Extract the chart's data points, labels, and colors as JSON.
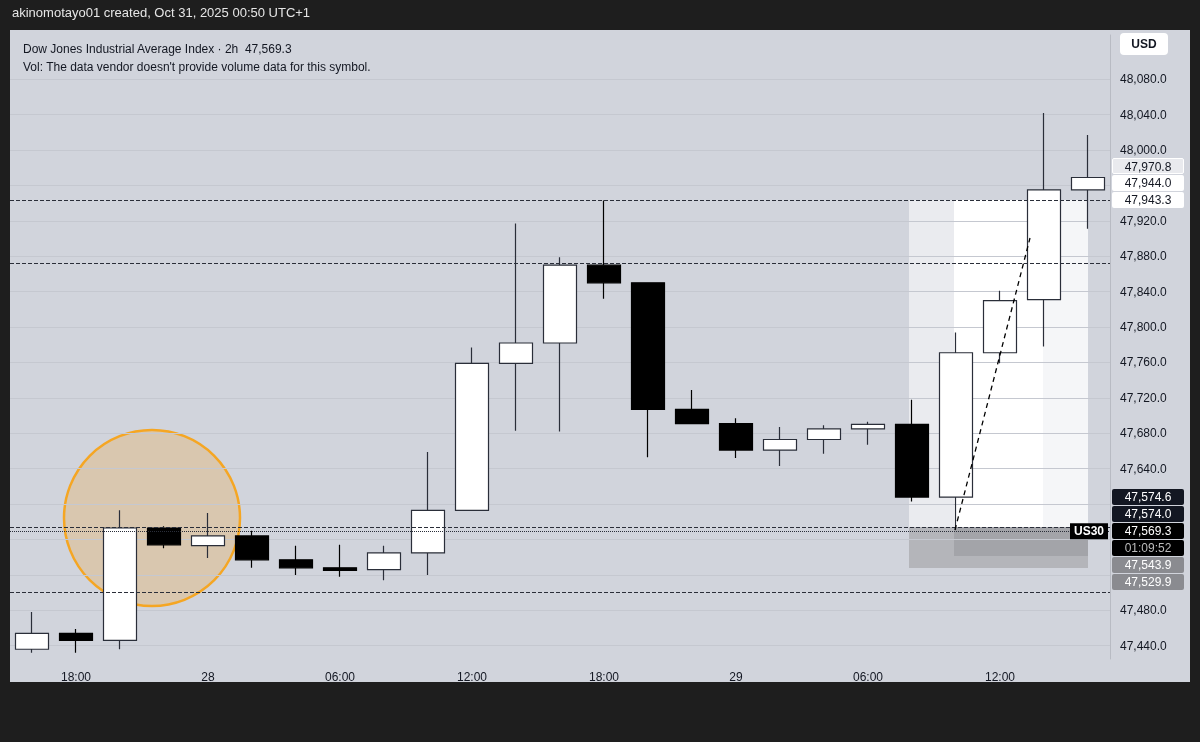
{
  "chart_data": {
    "type": "candlestick",
    "title": "Dow Jones Industrial Average Index · 2h  47,569.3",
    "subtitle": "Vol: The data vendor doesn't provide volume data for this symbol.",
    "categories": [
      null,
      "18:00",
      null,
      null,
      "28",
      null,
      null,
      "06:00",
      null,
      null,
      "12:00",
      null,
      null,
      "18:00",
      null,
      null,
      "29",
      null,
      null,
      "06:00",
      null,
      null,
      "12:00",
      null,
      null
    ],
    "ohlc": [
      [
        47436,
        47478,
        47432,
        47454
      ],
      [
        47454,
        47459,
        47432,
        47446
      ],
      [
        47446,
        47593,
        47436,
        47573
      ],
      [
        47573,
        47575,
        47550,
        47554
      ],
      [
        47553,
        47590,
        47539,
        47564
      ],
      [
        47564,
        47570,
        47528,
        47537
      ],
      [
        47537,
        47553,
        47520,
        47528
      ],
      [
        47528,
        47554,
        47518,
        47525
      ],
      [
        47526,
        47553,
        47514,
        47545
      ],
      [
        47545,
        47659,
        47520,
        47593
      ],
      [
        47593,
        47777,
        47593,
        47759
      ],
      [
        47759,
        47917,
        47683,
        47782
      ],
      [
        47782,
        47879,
        47682,
        47870
      ],
      [
        47870,
        47943,
        47832,
        47850
      ],
      [
        47850,
        47850,
        47653,
        47707
      ],
      [
        47707,
        47729,
        47691,
        47691
      ],
      [
        47691,
        47697,
        47652,
        47661
      ],
      [
        47661,
        47687,
        47643,
        47673
      ],
      [
        47673,
        47689,
        47657,
        47685
      ],
      [
        47685,
        47693,
        47667,
        47690
      ],
      [
        47690,
        47718,
        47603,
        47608
      ],
      [
        47608,
        47794,
        47571,
        47771
      ],
      [
        47771,
        47841,
        47759,
        47830
      ],
      [
        47831,
        48042,
        47778,
        47955
      ],
      [
        47955,
        48017,
        47911,
        47969
      ]
    ],
    "colors": [
      "#ffffff",
      "#000000",
      "#ffffff",
      "#000000",
      "#ffffff",
      "#000000",
      "#000000",
      "#000000",
      "#ffffff",
      "#ffffff",
      "#ffffff",
      "#ffffff",
      "#ffffff",
      "#000000",
      "#000000",
      "#000000",
      "#000000",
      "#ffffff",
      "#ffffff",
      "#ffffff",
      "#000000",
      "#ffffff",
      "#ffffff",
      "#ffffff",
      "#ffffff"
    ],
    "ylim": [
      47425,
      48130
    ],
    "yticks": [
      {
        "value": 47440,
        "label": "47,440.0"
      },
      {
        "value": 47480,
        "label": "47,480.0"
      },
      {
        "value": 47520,
        "label": null
      },
      {
        "value": 47560,
        "label": null
      },
      {
        "value": 47600,
        "label": null
      },
      {
        "value": 47640,
        "label": "47,640.0"
      },
      {
        "value": 47680,
        "label": "47,680.0"
      },
      {
        "value": 47720,
        "label": "47,720.0"
      },
      {
        "value": 47760,
        "label": "47,760.0"
      },
      {
        "value": 47800,
        "label": "47,800.0"
      },
      {
        "value": 47840,
        "label": "47,840.0"
      },
      {
        "value": 47880,
        "label": "47,880.0"
      },
      {
        "value": 47920,
        "label": "47,920.0"
      },
      {
        "value": 47960,
        "label": null
      },
      {
        "value": 48000,
        "label": "48,000.0"
      },
      {
        "value": 48040,
        "label": "48,040.0"
      },
      {
        "value": 48080,
        "label": "48,080.0"
      }
    ],
    "grid": "y",
    "ref_lines": [
      {
        "axis": "y",
        "value": 47943.3,
        "line_style": "dashed"
      },
      {
        "axis": "y",
        "value": 47872,
        "line_style": "dashed"
      },
      {
        "axis": "y",
        "value": 47574,
        "line_style": "dashed"
      },
      {
        "axis": "y",
        "value": 47569.3,
        "label": "US30",
        "line_style": "dotted"
      },
      {
        "axis": "y",
        "value": 47500,
        "line_style": "dashed"
      }
    ],
    "annotations": [
      "akinomotayo01 created, Oct 31, 2025 00:50 UTC+1",
      "USD",
      "47,970.8",
      "47,944.0",
      "47,943.3",
      "47,574.6",
      "47,574.0",
      "47,569.3",
      "01:09:52",
      "47,543.9",
      "47,529.9"
    ]
  }
}
